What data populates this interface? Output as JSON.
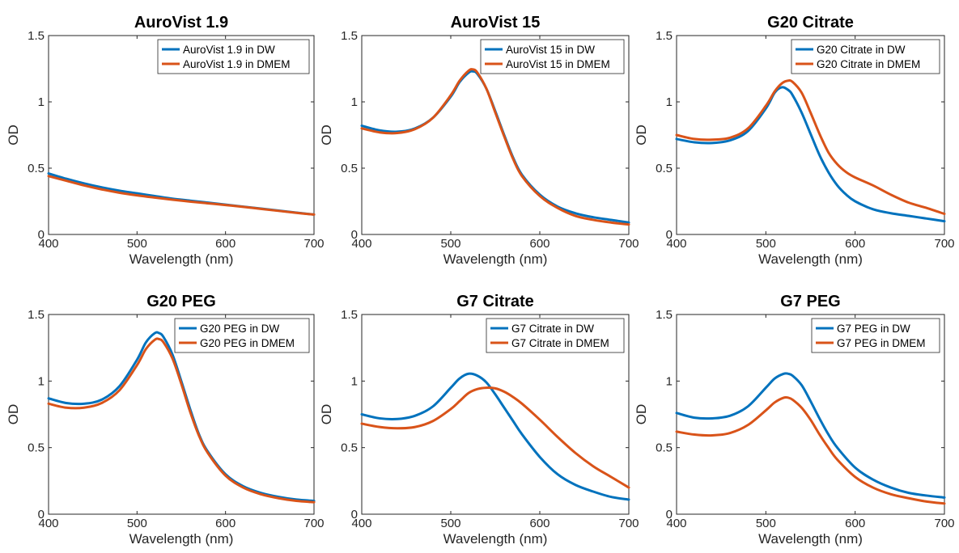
{
  "chart_data": [
    {
      "type": "line",
      "title": "AuroVist 1.9",
      "xlabel": "Wavelength (nm)",
      "ylabel": "OD",
      "xlim": [
        400,
        700
      ],
      "ylim": [
        0,
        1.5
      ],
      "xticks": [
        "400",
        "500",
        "600",
        "700"
      ],
      "yticks": [
        "0",
        "0.5",
        "1",
        "1.5"
      ],
      "legend": "top-right",
      "grid": false,
      "x": [
        400,
        420,
        440,
        460,
        480,
        500,
        520,
        540,
        560,
        580,
        600,
        620,
        640,
        660,
        680,
        700
      ],
      "series": [
        {
          "name": "AuroVist 1.9 in DW",
          "color": "#0072BD",
          "values": [
            0.46,
            0.42,
            0.385,
            0.355,
            0.33,
            0.31,
            0.29,
            0.27,
            0.255,
            0.24,
            0.225,
            0.21,
            0.195,
            0.18,
            0.165,
            0.15
          ]
        },
        {
          "name": "AuroVist 1.9 in DMEM",
          "color": "#D95319",
          "values": [
            0.44,
            0.405,
            0.37,
            0.34,
            0.315,
            0.295,
            0.278,
            0.262,
            0.248,
            0.235,
            0.222,
            0.208,
            0.193,
            0.178,
            0.163,
            0.15
          ]
        }
      ]
    },
    {
      "type": "line",
      "title": "AuroVist 15",
      "xlabel": "Wavelength (nm)",
      "ylabel": "OD",
      "xlim": [
        400,
        700
      ],
      "ylim": [
        0,
        1.5
      ],
      "xticks": [
        "400",
        "500",
        "600",
        "700"
      ],
      "yticks": [
        "0",
        "0.5",
        "1",
        "1.5"
      ],
      "legend": "top-right",
      "grid": false,
      "x": [
        400,
        420,
        440,
        460,
        480,
        500,
        510,
        520,
        525,
        530,
        540,
        550,
        560,
        570,
        580,
        600,
        620,
        640,
        660,
        680,
        700
      ],
      "series": [
        {
          "name": "AuroVist 15 in DW",
          "color": "#0072BD",
          "values": [
            0.82,
            0.785,
            0.775,
            0.8,
            0.88,
            1.04,
            1.15,
            1.22,
            1.23,
            1.21,
            1.1,
            0.93,
            0.75,
            0.58,
            0.45,
            0.3,
            0.21,
            0.16,
            0.13,
            0.11,
            0.09
          ]
        },
        {
          "name": "AuroVist 15 in DMEM",
          "color": "#D95319",
          "values": [
            0.8,
            0.77,
            0.765,
            0.795,
            0.88,
            1.05,
            1.16,
            1.235,
            1.245,
            1.22,
            1.1,
            0.92,
            0.74,
            0.57,
            0.44,
            0.29,
            0.2,
            0.14,
            0.11,
            0.09,
            0.075
          ]
        }
      ]
    },
    {
      "type": "line",
      "title": "G20 Citrate",
      "xlabel": "Wavelength (nm)",
      "ylabel": "OD",
      "xlim": [
        400,
        700
      ],
      "ylim": [
        0,
        1.5
      ],
      "xticks": [
        "400",
        "500",
        "600",
        "700"
      ],
      "yticks": [
        "0",
        "0.5",
        "1",
        "1.5"
      ],
      "legend": "top-right",
      "grid": false,
      "x": [
        400,
        420,
        440,
        460,
        480,
        500,
        510,
        518,
        525,
        530,
        540,
        550,
        560,
        570,
        580,
        590,
        600,
        620,
        640,
        660,
        680,
        700
      ],
      "series": [
        {
          "name": "G20 Citrate in DW",
          "color": "#0072BD",
          "values": [
            0.72,
            0.695,
            0.69,
            0.71,
            0.78,
            0.95,
            1.07,
            1.11,
            1.09,
            1.05,
            0.92,
            0.76,
            0.6,
            0.47,
            0.37,
            0.3,
            0.25,
            0.19,
            0.16,
            0.14,
            0.12,
            0.1
          ]
        },
        {
          "name": "G20 Citrate in DMEM",
          "color": "#D95319",
          "values": [
            0.75,
            0.72,
            0.715,
            0.73,
            0.8,
            0.97,
            1.08,
            1.14,
            1.16,
            1.15,
            1.07,
            0.92,
            0.76,
            0.62,
            0.53,
            0.47,
            0.43,
            0.37,
            0.3,
            0.24,
            0.2,
            0.155
          ]
        }
      ]
    },
    {
      "type": "line",
      "title": "G20 PEG",
      "xlabel": "Wavelength (nm)",
      "ylabel": "OD",
      "xlim": [
        400,
        700
      ],
      "ylim": [
        0,
        1.5
      ],
      "xticks": [
        "400",
        "500",
        "600",
        "700"
      ],
      "yticks": [
        "0",
        "0.5",
        "1",
        "1.5"
      ],
      "legend": "top-right",
      "grid": false,
      "x": [
        400,
        420,
        440,
        460,
        480,
        500,
        510,
        520,
        525,
        530,
        540,
        550,
        560,
        570,
        580,
        600,
        620,
        640,
        660,
        680,
        700
      ],
      "series": [
        {
          "name": "G20 PEG in DW",
          "color": "#0072BD",
          "values": [
            0.87,
            0.835,
            0.83,
            0.86,
            0.96,
            1.16,
            1.29,
            1.36,
            1.36,
            1.33,
            1.2,
            1.0,
            0.79,
            0.6,
            0.47,
            0.3,
            0.21,
            0.16,
            0.13,
            0.11,
            0.1
          ]
        },
        {
          "name": "G20 PEG in DMEM",
          "color": "#D95319",
          "values": [
            0.83,
            0.8,
            0.8,
            0.835,
            0.93,
            1.12,
            1.24,
            1.31,
            1.315,
            1.29,
            1.17,
            0.98,
            0.77,
            0.59,
            0.46,
            0.29,
            0.2,
            0.15,
            0.12,
            0.1,
            0.09
          ]
        }
      ]
    },
    {
      "type": "line",
      "title": "G7 Citrate",
      "xlabel": "Wavelength (nm)",
      "ylabel": "OD",
      "xlim": [
        400,
        700
      ],
      "ylim": [
        0,
        1.5
      ],
      "xticks": [
        "400",
        "500",
        "600",
        "700"
      ],
      "yticks": [
        "0",
        "0.5",
        "1",
        "1.5"
      ],
      "legend": "top-right",
      "grid": false,
      "x": [
        400,
        420,
        440,
        460,
        480,
        500,
        510,
        520,
        530,
        540,
        550,
        560,
        570,
        580,
        600,
        620,
        640,
        660,
        680,
        700
      ],
      "series": [
        {
          "name": "G7 Citrate in DW",
          "color": "#0072BD",
          "values": [
            0.75,
            0.72,
            0.715,
            0.74,
            0.81,
            0.95,
            1.02,
            1.055,
            1.04,
            0.99,
            0.9,
            0.8,
            0.7,
            0.6,
            0.43,
            0.3,
            0.22,
            0.17,
            0.13,
            0.11
          ]
        },
        {
          "name": "G7 Citrate in DMEM",
          "color": "#D95319",
          "values": [
            0.68,
            0.655,
            0.645,
            0.655,
            0.7,
            0.79,
            0.85,
            0.91,
            0.94,
            0.95,
            0.945,
            0.92,
            0.88,
            0.83,
            0.71,
            0.58,
            0.46,
            0.36,
            0.28,
            0.2
          ]
        }
      ]
    },
    {
      "type": "line",
      "title": "G7 PEG",
      "xlabel": "Wavelength (nm)",
      "ylabel": "OD",
      "xlim": [
        400,
        700
      ],
      "ylim": [
        0,
        1.5
      ],
      "xticks": [
        "400",
        "500",
        "600",
        "700"
      ],
      "yticks": [
        "0",
        "0.5",
        "1",
        "1.5"
      ],
      "legend": "top-right",
      "grid": false,
      "x": [
        400,
        420,
        440,
        460,
        480,
        500,
        510,
        520,
        525,
        530,
        540,
        550,
        560,
        570,
        580,
        600,
        620,
        640,
        660,
        680,
        700
      ],
      "series": [
        {
          "name": "G7 PEG in DW",
          "color": "#0072BD",
          "values": [
            0.76,
            0.725,
            0.72,
            0.74,
            0.81,
            0.95,
            1.02,
            1.055,
            1.055,
            1.04,
            0.97,
            0.85,
            0.72,
            0.6,
            0.5,
            0.35,
            0.26,
            0.2,
            0.16,
            0.14,
            0.125
          ]
        },
        {
          "name": "G7 PEG in DMEM",
          "color": "#D95319",
          "values": [
            0.62,
            0.598,
            0.592,
            0.61,
            0.67,
            0.78,
            0.84,
            0.875,
            0.875,
            0.86,
            0.8,
            0.71,
            0.6,
            0.5,
            0.41,
            0.28,
            0.2,
            0.15,
            0.12,
            0.095,
            0.08
          ]
        }
      ]
    }
  ]
}
